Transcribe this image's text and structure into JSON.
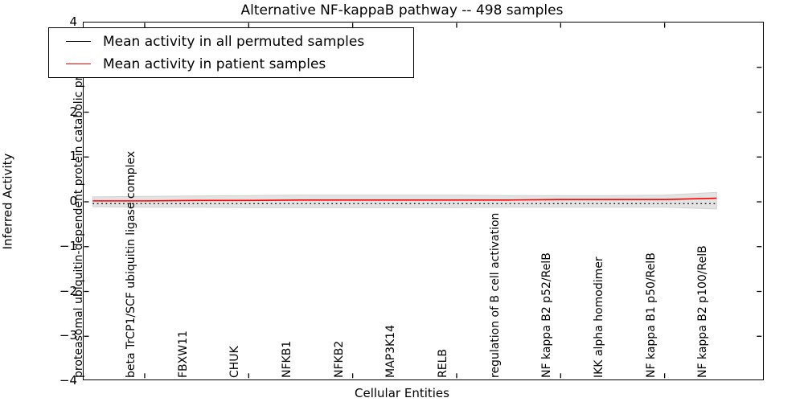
{
  "figure": {
    "title": "Alternative NF-kappaB pathway -- 498 samples",
    "xlabel": "Cellular Entities",
    "ylabel": "Inferred Activity"
  },
  "legend": {
    "entries": [
      {
        "label": "Mean activity in all permuted samples",
        "color": "#000000",
        "sample_style": "solid"
      },
      {
        "label": "Mean activity in patient samples",
        "color": "#ff0000",
        "sample_style": "solid"
      }
    ]
  },
  "chart_data": {
    "type": "line",
    "title": "Alternative NF-kappaB pathway -- 498 samples",
    "xlabel": "Cellular Entities",
    "ylabel": "Inferred Activity",
    "ylim": [
      -4,
      4
    ],
    "ytick_labels": [
      "4",
      "3",
      "2",
      "1",
      "0",
      "−1",
      "−2",
      "−3",
      "−4"
    ],
    "grid": false,
    "legend_position": "upper left",
    "categories": [
      "proteasomal ubiquitin-dependent protein catabolic pr",
      "beta TrCP1/SCF ubiquitin ligase complex",
      "FBXW11",
      "CHUK",
      "NFKB1",
      "NFKB2",
      "MAP3K14",
      "RELB",
      "regulation of B cell activation",
      "NF kappa B2 p52/RelB",
      "IKK alpha homodimer",
      "NF kappa B1 p50/RelB",
      "NF kappa B2 p100/RelB"
    ],
    "series": [
      {
        "name": "Mean activity in all permuted samples",
        "color": "#000000",
        "style": "dotted",
        "values": [
          -0.04,
          -0.04,
          -0.04,
          -0.04,
          -0.04,
          -0.04,
          -0.04,
          -0.04,
          -0.04,
          -0.04,
          -0.04,
          -0.04,
          -0.04
        ]
      },
      {
        "name": "Mean activity in patient samples",
        "color": "#ff0000",
        "style": "solid",
        "values": [
          0.02,
          0.02,
          0.03,
          0.03,
          0.04,
          0.04,
          0.04,
          0.04,
          0.04,
          0.05,
          0.05,
          0.05,
          0.08
        ]
      }
    ],
    "band": {
      "name": "permuted activity range",
      "color": "#e3e3e3",
      "edge_color": "#d2d2d2",
      "upper": [
        0.11,
        0.12,
        0.13,
        0.14,
        0.15,
        0.15,
        0.15,
        0.15,
        0.14,
        0.14,
        0.14,
        0.15,
        0.21
      ],
      "lower": [
        -0.11,
        -0.12,
        -0.12,
        -0.13,
        -0.13,
        -0.13,
        -0.13,
        -0.13,
        -0.12,
        -0.12,
        -0.12,
        -0.12,
        -0.16
      ]
    }
  }
}
